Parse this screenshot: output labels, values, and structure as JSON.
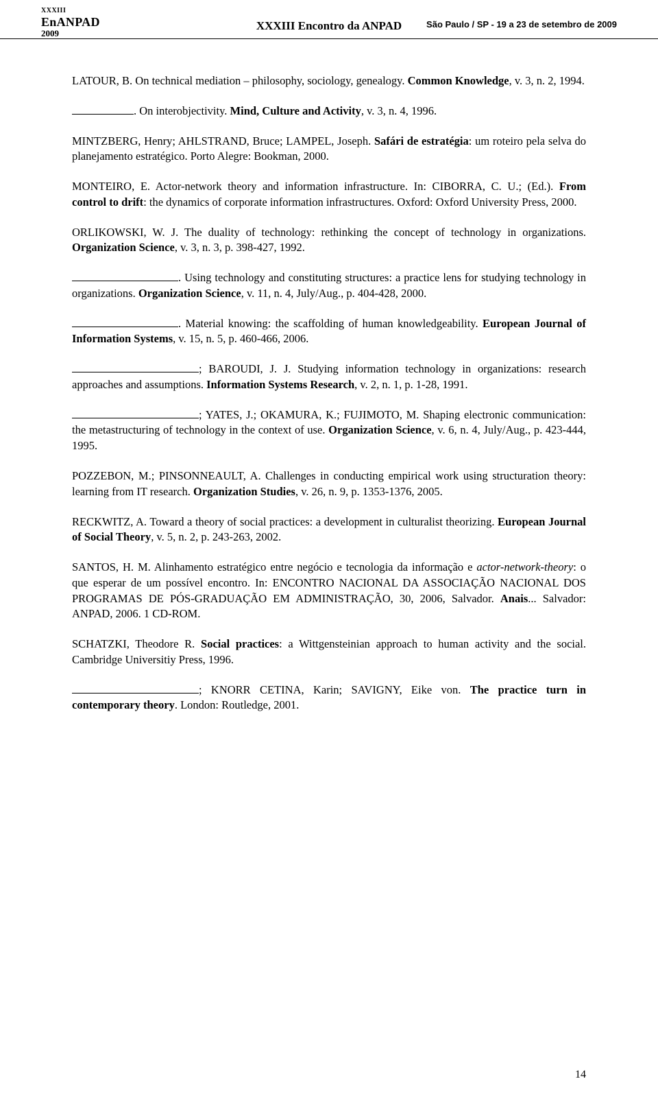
{
  "header": {
    "logo_line1": "XXXIII",
    "logo_line2": "EnANPAD",
    "logo_line3": "2009",
    "center": "XXXIII Encontro da ANPAD",
    "right": "São Paulo / SP - 19 a 23 de setembro de 2009"
  },
  "refs": {
    "r1_a": "LATOUR, B. On technical mediation – philosophy, sociology, genealogy. ",
    "r1_b": "Common Knowledge",
    "r1_c": ", v. 3, n. 2, 1994.",
    "r2_a": ". On interobjectivity. ",
    "r2_b": "Mind, Culture and Activity",
    "r2_c": ", v. 3, n. 4, 1996.",
    "r3_a": "MINTZBERG, Henry; AHLSTRAND, Bruce; LAMPEL, Joseph. ",
    "r3_b": "Safári de estratégia",
    "r3_c": ": um roteiro pela selva do planejamento estratégico. Porto Alegre: Bookman, 2000.",
    "r4_a": "MONTEIRO, E. Actor-network theory and information infrastructure. In: CIBORRA, C. U.; (Ed.). ",
    "r4_b": "From control to drift",
    "r4_c": ": the dynamics of corporate information infrastructures. Oxford: Oxford University Press, 2000.",
    "r5_a": "ORLIKOWSKI, W. J. The duality of technology: rethinking the concept of technology in organizations. ",
    "r5_b": "Organization Science",
    "r5_c": ", v. 3, n. 3, p. 398-427, 1992.",
    "r6_a": ". Using technology and constituting structures: a practice lens for studying technology in organizations. ",
    "r6_b": "Organization Science",
    "r6_c": ", v. 11, n. 4, July/Aug., p. 404-428, 2000.",
    "r7_a": ". Material knowing: the scaffolding of human knowledgeability. ",
    "r7_b": "European Journal of Information Systems",
    "r7_c": ", v. 15, n. 5, p. 460-466, 2006.",
    "r8_a": "; BAROUDI, J. J. Studying information technology in organizations: research approaches and assumptions. ",
    "r8_b": "Information Systems Research",
    "r8_c": ", v. 2, n. 1, p. 1-28, 1991.",
    "r9_a": "; YATES, J.; OKAMURA, K.; FUJIMOTO, M. Shaping electronic communication: the metastructuring of technology in the context of use. ",
    "r9_b": "Organization Science",
    "r9_c": ", v. 6, n. 4, July/Aug., p. 423-444, 1995.",
    "r10_a": "POZZEBON, M.; PINSONNEAULT, A. Challenges in conducting empirical work using structuration theory: learning from IT research. ",
    "r10_b": "Organization Studies",
    "r10_c": ", v. 26, n. 9, p. 1353-1376, 2005.",
    "r11_a": "RECKWITZ, A. Toward a theory of social practices: a development in culturalist theorizing. ",
    "r11_b": "European Journal of Social Theory",
    "r11_c": ", v. 5, n. 2, p. 243-263, 2002.",
    "r12_a": "SANTOS, H. M. Alinhamento estratégico entre negócio e tecnologia da informação e ",
    "r12_b": "actor-network-theory",
    "r12_c": ": o que esperar de um possível encontro. In: ENCONTRO NACIONAL DA ASSOCIAÇÃO NACIONAL DOS PROGRAMAS DE PÓS-GRADUAÇÃO EM ADMINISTRAÇÃO, 30, 2006, Salvador. ",
    "r12_d": "Anais",
    "r12_e": "... Salvador: ANPAD, 2006. 1 CD-ROM.",
    "r13_a": "SCHATZKI, Theodore R. ",
    "r13_b": "Social practices",
    "r13_c": ": a Wittgensteinian approach to human activity and the social. Cambridge Universitiy Press, 1996.",
    "r14_a": "; KNORR CETINA, Karin; SAVIGNY, Eike von. ",
    "r14_b": "The practice turn in contemporary theory",
    "r14_c": ". London: Routledge, 2001."
  },
  "page_number": "14"
}
